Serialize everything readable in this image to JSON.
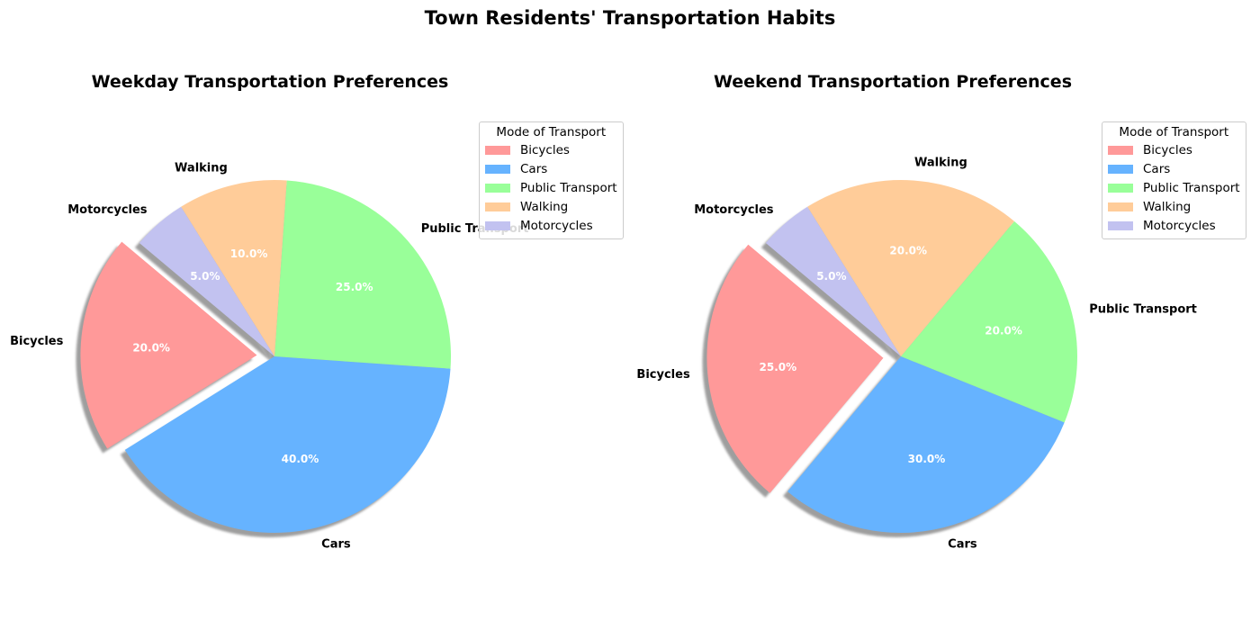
{
  "figure_title": "Town Residents' Transportation Habits",
  "chart_data": [
    {
      "type": "pie",
      "title": "Weekday Transportation Preferences",
      "categories": [
        "Bicycles",
        "Cars",
        "Public Transport",
        "Walking",
        "Motorcycles"
      ],
      "values": [
        20.0,
        40.0,
        25.0,
        10.0,
        5.0
      ],
      "pct_labels": [
        "20.0%",
        "40.0%",
        "25.0%",
        "10.0%",
        "5.0%"
      ],
      "colors": [
        "#ff9999",
        "#66b3ff",
        "#99ff99",
        "#ffcc99",
        "#c2c2f0"
      ],
      "explode": [
        0.1,
        0.0,
        0.0,
        0.0,
        0.0
      ],
      "start_angle": 140,
      "shadow": true,
      "legend": {
        "title": "Mode of Transport",
        "placement": "upper right, outside"
      }
    },
    {
      "type": "pie",
      "title": "Weekend Transportation Preferences",
      "categories": [
        "Bicycles",
        "Cars",
        "Public Transport",
        "Walking",
        "Motorcycles"
      ],
      "values": [
        25.0,
        30.0,
        20.0,
        20.0,
        5.0
      ],
      "pct_labels": [
        "25.0%",
        "30.0%",
        "20.0%",
        "20.0%",
        "5.0%"
      ],
      "colors": [
        "#ff9999",
        "#66b3ff",
        "#99ff99",
        "#ffcc99",
        "#c2c2f0"
      ],
      "explode": [
        0.1,
        0.0,
        0.0,
        0.0,
        0.0
      ],
      "start_angle": 140,
      "shadow": true,
      "legend": {
        "title": "Mode of Transport",
        "placement": "upper right, outside"
      }
    }
  ]
}
